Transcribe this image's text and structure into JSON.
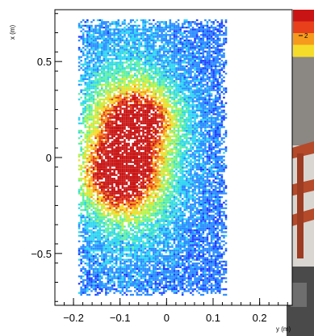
{
  "chart_data": {
    "type": "heatmap",
    "title": "",
    "xlabel": "y (m)",
    "ylabel": "x (m)",
    "xlim": [
      -0.24,
      0.27
    ],
    "ylim": [
      -0.77,
      0.77
    ],
    "x_ticks": [
      -0.2,
      -0.1,
      0,
      0.1,
      0.2
    ],
    "x_tick_labels": [
      "−0.2",
      "−0.1",
      "0",
      "0.1",
      "0.2"
    ],
    "y_ticks": [
      -0.5,
      0,
      0.5
    ],
    "y_tick_labels": [
      "−0.5",
      "0",
      "0.5"
    ],
    "colorbar_visible_label": "2",
    "colorscale": [
      "#3a0fb8",
      "#1f3dff",
      "#2a8cff",
      "#2fd6f0",
      "#5ef0a4",
      "#b8f24a",
      "#f5dc2a",
      "#f59a1c",
      "#e8401a",
      "#c81414"
    ],
    "density_model": {
      "x_range": [
        -0.19,
        0.13
      ],
      "y_range": [
        -0.72,
        0.72
      ],
      "cells_x": 72,
      "cells_y": 150,
      "peaks": [
        {
          "x": -0.1,
          "y": -0.08,
          "sigma_x": 0.05,
          "sigma_y": 0.12,
          "level": 0.9
        },
        {
          "x": -0.06,
          "y": 0.2,
          "sigma_x": 0.05,
          "sigma_y": 0.1,
          "level": 0.7
        },
        {
          "x": -0.08,
          "y": 0.05,
          "sigma_x": 0.07,
          "sigma_y": 0.3,
          "level": 0.55
        }
      ]
    }
  },
  "background_photo": {
    "colors": {
      "sky": "#dcdcdc",
      "dark": "#3a3a3a",
      "beam": "#b44a2a",
      "light": "#c8c8c8"
    }
  }
}
